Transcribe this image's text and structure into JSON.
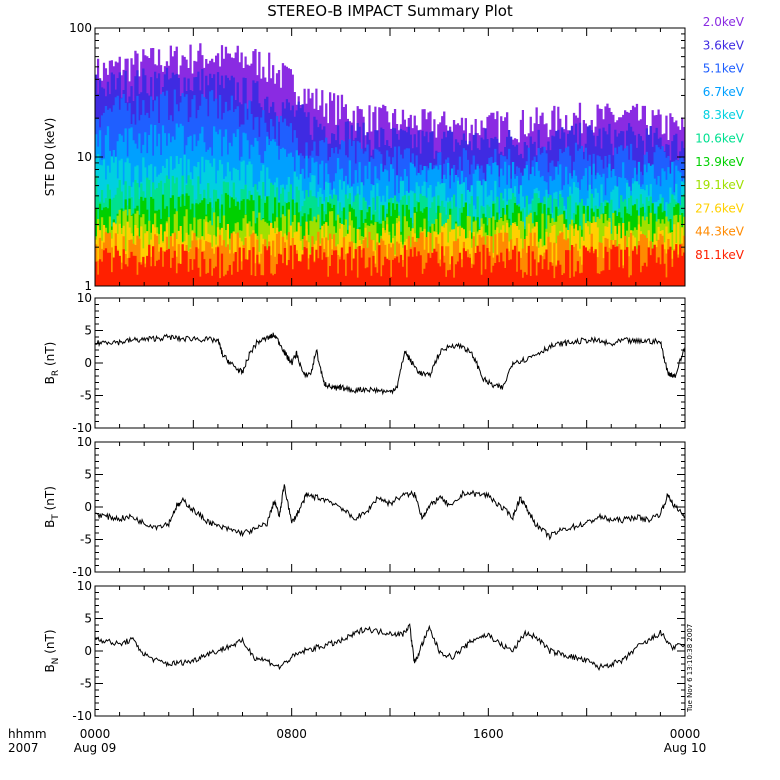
{
  "title": "STEREO-B IMPACT Summary Plot",
  "time_label": "hhmm",
  "year_label": "2007",
  "stamp": "Tue Nov  6 13:10:38 2007",
  "chart_data": [
    {
      "id": "electron",
      "type": "area",
      "ylabel": "STE D0 (keV)",
      "yscale": "log",
      "ylim": [
        1,
        100
      ],
      "y_ticks": [
        "1",
        "10",
        "100"
      ],
      "x_ticks": [
        "0000",
        "0800",
        "1600",
        "0000"
      ],
      "x_subticks": [
        "Aug 09",
        "",
        "",
        "Aug 10"
      ],
      "xlim_hours": [
        0,
        24
      ],
      "grid": false,
      "legend_position": "right",
      "series": [
        {
          "name": "2.0keV",
          "color": "#8a2be2",
          "typical_upper_keV": [
            45,
            55,
            60,
            55,
            28,
            20,
            18,
            17,
            18,
            20,
            20,
            16
          ]
        },
        {
          "name": "3.6keV",
          "color": "#3f2be2",
          "typical_upper_keV": [
            35,
            38,
            38,
            30,
            18,
            14,
            13,
            13,
            13,
            14,
            14,
            12
          ]
        },
        {
          "name": "5.1keV",
          "color": "#1f5fff",
          "typical_upper_keV": [
            22,
            25,
            26,
            20,
            12,
            10,
            9,
            9,
            9,
            10,
            10,
            9
          ]
        },
        {
          "name": "6.7keV",
          "color": "#00a0ff",
          "typical_upper_keV": [
            13,
            14,
            14,
            12,
            8,
            7,
            7,
            7,
            7,
            7,
            7,
            7
          ]
        },
        {
          "name": "8.3keV",
          "color": "#00d0e0",
          "typical_upper_keV": [
            8,
            8,
            8,
            7,
            5.5,
            5,
            5,
            5,
            5,
            5,
            5,
            5
          ]
        },
        {
          "name": "10.6keV",
          "color": "#00e090",
          "typical_upper_keV": [
            5.5,
            5.5,
            5.5,
            5,
            4.5,
            4,
            4,
            4,
            4,
            4,
            4,
            4
          ]
        },
        {
          "name": "13.9keV",
          "color": "#00d000",
          "typical_upper_keV": [
            4,
            4,
            4,
            4,
            3.5,
            3.4,
            3.4,
            3.4,
            3.4,
            3.4,
            3.4,
            3.4
          ]
        },
        {
          "name": "19.1keV",
          "color": "#a0e000",
          "typical_upper_keV": [
            3,
            3,
            3,
            3,
            3,
            2.8,
            2.8,
            2.8,
            2.8,
            2.8,
            2.8,
            2.8
          ]
        },
        {
          "name": "27.6keV",
          "color": "#ffd000",
          "typical_upper_keV": [
            2.4,
            2.4,
            2.4,
            2.4,
            2.4,
            2.4,
            2.4,
            2.4,
            2.4,
            2.4,
            2.4,
            2.4
          ]
        },
        {
          "name": "44.3keV",
          "color": "#ff8a00",
          "typical_upper_keV": [
            2,
            2,
            2,
            2,
            2,
            2,
            2,
            2,
            2,
            2,
            2,
            2
          ]
        },
        {
          "name": "81.1keV",
          "color": "#ff2000",
          "typical_upper_keV": [
            1.6,
            1.6,
            1.6,
            1.6,
            1.6,
            1.6,
            1.6,
            1.6,
            1.6,
            1.6,
            1.6,
            1.6
          ]
        }
      ]
    },
    {
      "id": "BR",
      "type": "line",
      "ylabel_main": "B",
      "ylabel_sub": "R",
      "ylabel_unit": "(nT)",
      "ylim": [
        -10,
        10
      ],
      "y_ticks": [
        "-10",
        "-5",
        "0",
        "5",
        "10"
      ],
      "x": [
        0,
        0.5,
        1,
        1.5,
        2,
        2.5,
        3,
        3.5,
        4,
        4.5,
        5,
        5.2,
        5.5,
        5.8,
        6,
        6.3,
        6.6,
        7,
        7.3,
        7.6,
        7.8,
        8,
        8.2,
        8.5,
        8.8,
        9,
        9.3,
        9.5,
        9.8,
        10,
        10.5,
        11,
        11.5,
        12,
        12.3,
        12.6,
        12.9,
        13.2,
        13.6,
        14,
        14.5,
        15,
        15.4,
        15.8,
        16.2,
        16.6,
        17,
        17.5,
        18,
        18.5,
        19,
        19.5,
        20,
        20.5,
        21,
        21.5,
        22,
        22.5,
        23,
        23.3,
        23.6,
        24
      ],
      "values": [
        3,
        3.3,
        3.2,
        3.5,
        3.6,
        3.8,
        4,
        3.7,
        3.8,
        3.6,
        3.5,
        1.2,
        0,
        -1,
        -1.5,
        1.5,
        3.2,
        3.8,
        4.3,
        2.5,
        1,
        0,
        1.5,
        -2,
        -1.5,
        2,
        -3,
        -3.5,
        -4,
        -3.8,
        -4.2,
        -4,
        -4.2,
        -4.5,
        -3.5,
        1.8,
        0,
        -1.5,
        -2,
        1.5,
        2.8,
        2.5,
        1,
        -2.5,
        -3.5,
        -3.8,
        0.2,
        0.5,
        1.5,
        2.5,
        3,
        3.2,
        3.5,
        3.4,
        2.8,
        3.5,
        3.3,
        3.4,
        3.2,
        -1.5,
        -2,
        2.5
      ]
    },
    {
      "id": "BT",
      "type": "line",
      "ylabel_main": "B",
      "ylabel_sub": "T",
      "ylabel_unit": "(nT)",
      "ylim": [
        -10,
        10
      ],
      "y_ticks": [
        "-10",
        "-5",
        "0",
        "5",
        "10"
      ],
      "x": [
        0,
        0.5,
        1,
        1.5,
        2,
        2.5,
        3,
        3.3,
        3.6,
        4,
        4.5,
        5,
        5.5,
        6,
        6.5,
        7,
        7.3,
        7.5,
        7.7,
        8,
        8.3,
        8.6,
        9,
        9.5,
        10,
        10.5,
        11,
        11.5,
        12,
        12.5,
        13,
        13.3,
        13.6,
        14,
        14.5,
        15,
        15.5,
        16,
        16.5,
        17,
        17.3,
        17.6,
        18,
        18.5,
        19,
        19.5,
        20,
        20.5,
        21,
        21.5,
        22,
        22.5,
        23,
        23.3,
        23.6,
        24
      ],
      "values": [
        -1,
        -1.5,
        -1.8,
        -1.5,
        -2.5,
        -3,
        -2.5,
        0,
        1,
        -0.5,
        -2,
        -3,
        -3.5,
        -4,
        -3.5,
        -2.5,
        1,
        -1.5,
        3.5,
        -2.5,
        -0.5,
        1.8,
        1.5,
        1,
        0,
        -1.8,
        -1,
        1.5,
        0.5,
        1.8,
        2,
        -1.5,
        0,
        1.5,
        0,
        2.2,
        2,
        1.8,
        0,
        -1.5,
        1.5,
        -0.5,
        -3,
        -4.5,
        -3.5,
        -3,
        -2.5,
        -1.5,
        -2,
        -2,
        -1.5,
        -2,
        -1,
        1.8,
        0,
        -1.5
      ]
    },
    {
      "id": "BN",
      "type": "line",
      "ylabel_main": "B",
      "ylabel_sub": "N",
      "ylabel_unit": "(nT)",
      "ylim": [
        -10,
        10
      ],
      "y_ticks": [
        "-10",
        "-5",
        "0",
        "5",
        "10"
      ],
      "x": [
        0,
        0.5,
        1,
        1.5,
        2,
        2.5,
        3,
        3.5,
        4,
        4.5,
        5,
        5.5,
        6,
        6.5,
        7,
        7.5,
        8,
        8.5,
        9,
        9.5,
        10,
        10.5,
        11,
        11.5,
        12,
        12.5,
        12.8,
        13,
        13.3,
        13.6,
        14,
        14.5,
        15,
        15.5,
        16,
        16.5,
        17,
        17.5,
        18,
        18.5,
        19,
        19.5,
        20,
        20.5,
        21,
        21.5,
        22,
        22.5,
        23,
        23.5,
        24
      ],
      "values": [
        2,
        1.5,
        1,
        1.8,
        -0.5,
        -1.5,
        -2,
        -1.8,
        -1.5,
        -0.5,
        0,
        0.8,
        1.5,
        -1,
        -1.5,
        -2.5,
        -1,
        0,
        0.5,
        1,
        1.5,
        2.5,
        3.5,
        3,
        2.8,
        2.5,
        4,
        -2,
        1,
        3.5,
        0,
        -1,
        0.5,
        2,
        2.5,
        1,
        0,
        2.8,
        2,
        0,
        -0.5,
        -1,
        -1.5,
        -2.5,
        -2,
        -1.5,
        0.5,
        1.5,
        2.8,
        0.5,
        1
      ]
    }
  ]
}
